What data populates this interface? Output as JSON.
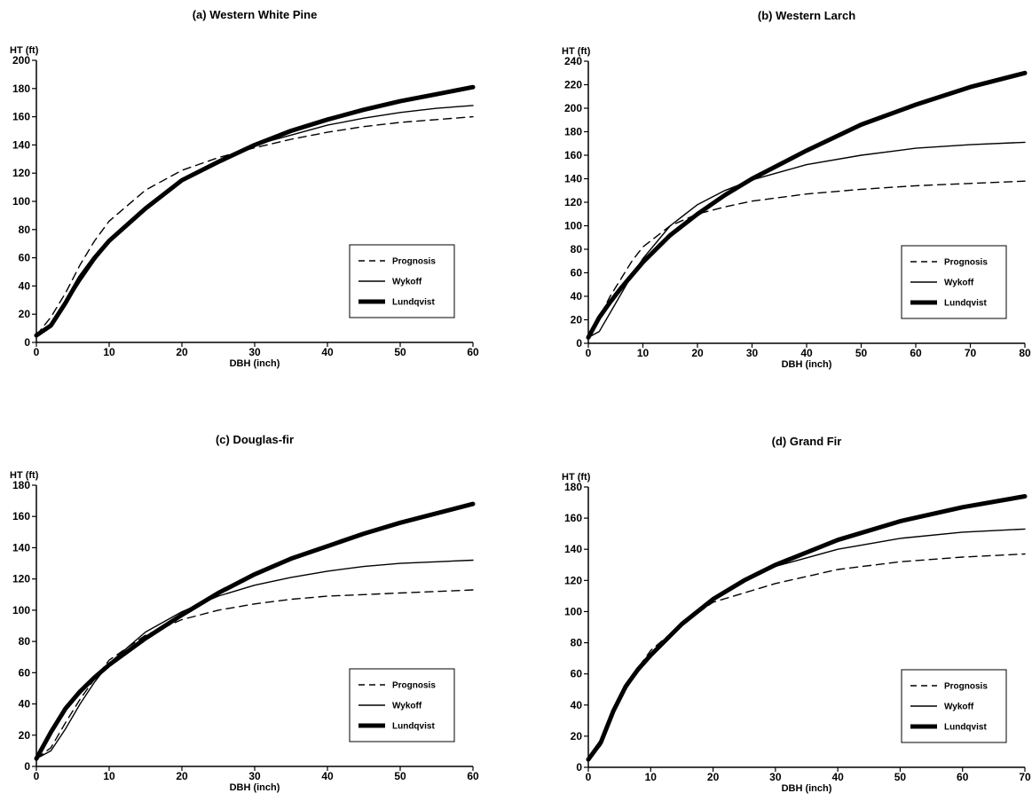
{
  "chart_data": [
    {
      "type": "line",
      "title": "(a) Western White Pine",
      "xlabel": "DBH (inch)",
      "ylabel": "HT (ft)",
      "xlim": [
        0,
        60
      ],
      "ylim": [
        0,
        200
      ],
      "xticks": [
        0,
        10,
        20,
        30,
        40,
        50,
        60
      ],
      "yticks": [
        0,
        20,
        40,
        60,
        80,
        100,
        120,
        140,
        160,
        180,
        200
      ],
      "grid": false,
      "legend_position": "bottom-right",
      "series": [
        {
          "name": "Prognosis",
          "style": "dashed",
          "x": [
            0,
            2,
            4,
            6,
            8,
            10,
            15,
            20,
            25,
            30,
            35,
            40,
            45,
            50,
            55,
            60
          ],
          "y": [
            5,
            18,
            35,
            55,
            72,
            86,
            108,
            122,
            131,
            138,
            144,
            149,
            153,
            156,
            158,
            160
          ]
        },
        {
          "name": "Wykoff",
          "style": "thin",
          "x": [
            0,
            2,
            4,
            6,
            8,
            10,
            15,
            20,
            25,
            30,
            35,
            40,
            45,
            50,
            55,
            60
          ],
          "y": [
            5,
            11,
            27,
            43,
            58,
            71,
            96,
            115,
            129,
            140,
            147,
            154,
            159,
            163,
            166,
            168
          ]
        },
        {
          "name": "Lundqvist",
          "style": "thick",
          "x": [
            0,
            2,
            4,
            6,
            8,
            10,
            15,
            20,
            25,
            30,
            35,
            40,
            45,
            50,
            55,
            60
          ],
          "y": [
            5,
            12,
            28,
            46,
            60,
            72,
            95,
            115,
            128,
            140,
            150,
            158,
            165,
            171,
            176,
            181
          ]
        }
      ]
    },
    {
      "type": "line",
      "title": "(b) Western Larch",
      "xlabel": "DBH (inch)",
      "ylabel": "HT (ft)",
      "xlim": [
        0,
        80
      ],
      "ylim": [
        0,
        240
      ],
      "xticks": [
        0,
        10,
        20,
        30,
        40,
        50,
        60,
        70,
        80
      ],
      "yticks": [
        0,
        20,
        40,
        60,
        80,
        100,
        120,
        140,
        160,
        180,
        200,
        220,
        240
      ],
      "grid": false,
      "legend_position": "bottom-right",
      "series": [
        {
          "name": "Prognosis",
          "style": "dashed",
          "x": [
            0,
            2,
            4,
            6,
            8,
            10,
            15,
            20,
            25,
            30,
            40,
            50,
            60,
            70,
            80
          ],
          "y": [
            5,
            22,
            40,
            55,
            70,
            82,
            100,
            110,
            116,
            121,
            127,
            131,
            134,
            136,
            138
          ]
        },
        {
          "name": "Wykoff",
          "style": "thin",
          "x": [
            0,
            2,
            4,
            6,
            8,
            10,
            15,
            20,
            25,
            30,
            40,
            50,
            60,
            70,
            80
          ],
          "y": [
            5,
            10,
            26,
            42,
            58,
            72,
            100,
            118,
            130,
            139,
            152,
            160,
            166,
            169,
            171
          ]
        },
        {
          "name": "Lundqvist",
          "style": "thick",
          "x": [
            0,
            2,
            4,
            6,
            8,
            10,
            15,
            20,
            25,
            30,
            40,
            50,
            60,
            70,
            80
          ],
          "y": [
            5,
            22,
            35,
            47,
            58,
            69,
            92,
            110,
            126,
            140,
            164,
            186,
            203,
            218,
            230
          ]
        }
      ]
    },
    {
      "type": "line",
      "title": "(c) Douglas-fir",
      "xlabel": "DBH (inch)",
      "ylabel": "HT (ft)",
      "xlim": [
        0,
        60
      ],
      "ylim": [
        0,
        180
      ],
      "xticks": [
        0,
        10,
        20,
        30,
        40,
        50,
        60
      ],
      "yticks": [
        0,
        20,
        40,
        60,
        80,
        100,
        120,
        140,
        160,
        180
      ],
      "grid": false,
      "legend_position": "bottom-right",
      "series": [
        {
          "name": "Prognosis",
          "style": "dashed",
          "x": [
            0,
            2,
            4,
            6,
            8,
            10,
            15,
            20,
            25,
            30,
            35,
            40,
            45,
            50,
            55,
            60
          ],
          "y": [
            5,
            12,
            28,
            43,
            56,
            68,
            84,
            94,
            100,
            104,
            107,
            109,
            110,
            111,
            112,
            113
          ]
        },
        {
          "name": "Wykoff",
          "style": "thin",
          "x": [
            0,
            2,
            4,
            6,
            8,
            10,
            15,
            20,
            25,
            30,
            35,
            40,
            45,
            50,
            55,
            60
          ],
          "y": [
            5,
            10,
            24,
            40,
            54,
            66,
            86,
            99,
            109,
            116,
            121,
            125,
            128,
            130,
            131,
            132
          ]
        },
        {
          "name": "Lundqvist",
          "style": "thick",
          "x": [
            0,
            2,
            4,
            6,
            8,
            10,
            15,
            20,
            25,
            30,
            35,
            40,
            45,
            50,
            55,
            60
          ],
          "y": [
            5,
            22,
            37,
            48,
            57,
            65,
            82,
            97,
            111,
            123,
            133,
            141,
            149,
            156,
            162,
            168
          ]
        }
      ]
    },
    {
      "type": "line",
      "title": "(d) Grand Fir",
      "xlabel": "DBH (inch)",
      "ylabel": "HT (ft)",
      "xlim": [
        0,
        70
      ],
      "ylim": [
        0,
        180
      ],
      "xticks": [
        0,
        10,
        20,
        30,
        40,
        50,
        60,
        70
      ],
      "yticks": [
        0,
        20,
        40,
        60,
        80,
        100,
        120,
        140,
        160,
        180
      ],
      "grid": false,
      "legend_position": "bottom-right",
      "series": [
        {
          "name": "Prognosis",
          "style": "dashed",
          "x": [
            0,
            2,
            4,
            6,
            8,
            10,
            15,
            20,
            25,
            30,
            40,
            50,
            60,
            70
          ],
          "y": [
            5,
            18,
            36,
            52,
            64,
            75,
            92,
            106,
            112,
            118,
            127,
            132,
            135,
            137
          ]
        },
        {
          "name": "Wykoff",
          "style": "thin",
          "x": [
            0,
            2,
            4,
            6,
            8,
            10,
            15,
            20,
            25,
            30,
            40,
            50,
            60,
            70
          ],
          "y": [
            5,
            14,
            34,
            50,
            62,
            72,
            92,
            108,
            120,
            129,
            140,
            147,
            151,
            153
          ]
        },
        {
          "name": "Lundqvist",
          "style": "thick",
          "x": [
            0,
            2,
            4,
            6,
            8,
            10,
            15,
            20,
            25,
            30,
            40,
            50,
            60,
            70
          ],
          "y": [
            5,
            16,
            36,
            52,
            63,
            72,
            92,
            108,
            120,
            130,
            146,
            158,
            167,
            174
          ]
        }
      ]
    }
  ]
}
